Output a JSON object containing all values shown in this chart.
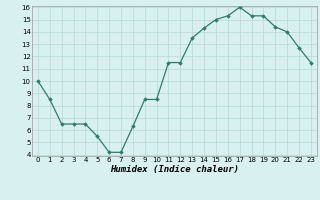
{
  "x": [
    0,
    1,
    2,
    3,
    4,
    5,
    6,
    7,
    8,
    9,
    10,
    11,
    12,
    13,
    14,
    15,
    16,
    17,
    18,
    19,
    20,
    21,
    22,
    23
  ],
  "y": [
    10.0,
    8.5,
    6.5,
    6.5,
    6.5,
    5.5,
    4.2,
    4.2,
    6.3,
    8.5,
    8.5,
    11.5,
    11.5,
    13.5,
    14.3,
    15.0,
    15.3,
    16.0,
    15.3,
    15.3,
    14.4,
    14.0,
    12.7,
    11.5
  ],
  "xlabel": "Humidex (Indice chaleur)",
  "ylim_min": 4,
  "ylim_max": 16,
  "xlim_min": -0.5,
  "xlim_max": 23.5,
  "yticks": [
    4,
    5,
    6,
    7,
    8,
    9,
    10,
    11,
    12,
    13,
    14,
    15,
    16
  ],
  "xticks": [
    0,
    1,
    2,
    3,
    4,
    5,
    6,
    7,
    8,
    9,
    10,
    11,
    12,
    13,
    14,
    15,
    16,
    17,
    18,
    19,
    20,
    21,
    22,
    23
  ],
  "line_color": "#2e7d6e",
  "marker": "D",
  "marker_size": 1.8,
  "bg_color": "#d8f0ef",
  "grid_color": "#b5d9d5",
  "tick_fontsize": 5.0,
  "xlabel_fontsize": 6.5
}
